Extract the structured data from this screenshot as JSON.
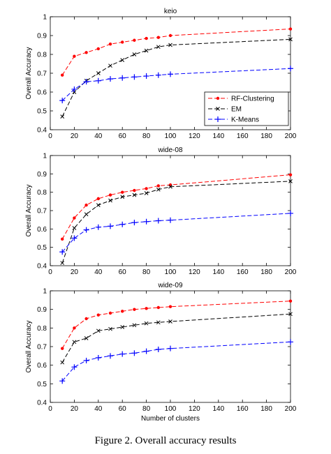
{
  "caption": "Figure 2.    Overall accuracy results",
  "colors": {
    "rf": "#ff0000",
    "em": "#000000",
    "km": "#0000ff"
  },
  "chart_data": [
    {
      "type": "line",
      "title": "keio",
      "xlabel": "",
      "ylabel": "Overall Accuracy",
      "xlim": [
        0,
        200
      ],
      "ylim": [
        0.4,
        1
      ],
      "xticks": [
        "0",
        "20",
        "40",
        "60",
        "80",
        "100",
        "120",
        "140",
        "160",
        "180",
        "200"
      ],
      "yticks": [
        "0.4",
        "0.5",
        "0.6",
        "0.7",
        "0.8",
        "0.9",
        "1"
      ],
      "legend": "right",
      "series": [
        {
          "name": "RF-Clustering",
          "key": "rf",
          "marker": "dot",
          "x": [
            10,
            20,
            30,
            40,
            50,
            60,
            70,
            80,
            90,
            100,
            200
          ],
          "y": [
            0.69,
            0.79,
            0.81,
            0.83,
            0.855,
            0.865,
            0.875,
            0.885,
            0.89,
            0.9,
            0.935
          ]
        },
        {
          "name": "EM",
          "key": "em",
          "marker": "x",
          "x": [
            10,
            20,
            30,
            40,
            50,
            60,
            70,
            80,
            90,
            100,
            200
          ],
          "y": [
            0.47,
            0.6,
            0.66,
            0.7,
            0.74,
            0.77,
            0.8,
            0.82,
            0.84,
            0.85,
            0.88
          ]
        },
        {
          "name": "K-Means",
          "key": "km",
          "marker": "plus",
          "x": [
            10,
            20,
            30,
            40,
            50,
            60,
            70,
            80,
            90,
            100,
            200
          ],
          "y": [
            0.555,
            0.615,
            0.655,
            0.66,
            0.67,
            0.675,
            0.68,
            0.685,
            0.69,
            0.695,
            0.725
          ]
        }
      ]
    },
    {
      "type": "line",
      "title": "wide-08",
      "xlabel": "",
      "ylabel": "Overall Accuracy",
      "xlim": [
        0,
        200
      ],
      "ylim": [
        0.4,
        1
      ],
      "xticks": [
        "0",
        "20",
        "40",
        "60",
        "80",
        "100",
        "120",
        "140",
        "160",
        "180",
        "200"
      ],
      "yticks": [
        "0.4",
        "0.5",
        "0.6",
        "0.7",
        "0.8",
        "0.9",
        "1"
      ],
      "series": [
        {
          "key": "rf",
          "marker": "dot",
          "x": [
            10,
            20,
            30,
            40,
            50,
            60,
            70,
            80,
            90,
            100,
            200
          ],
          "y": [
            0.545,
            0.66,
            0.73,
            0.765,
            0.785,
            0.8,
            0.81,
            0.82,
            0.835,
            0.84,
            0.895
          ]
        },
        {
          "key": "em",
          "marker": "x",
          "x": [
            10,
            20,
            30,
            40,
            50,
            60,
            70,
            80,
            90,
            100,
            200
          ],
          "y": [
            0.415,
            0.605,
            0.68,
            0.73,
            0.755,
            0.775,
            0.785,
            0.795,
            0.815,
            0.83,
            0.86
          ]
        },
        {
          "key": "km",
          "marker": "plus",
          "x": [
            10,
            20,
            30,
            40,
            50,
            60,
            70,
            80,
            90,
            100,
            200
          ],
          "y": [
            0.475,
            0.55,
            0.595,
            0.61,
            0.615,
            0.625,
            0.635,
            0.64,
            0.645,
            0.648,
            0.685
          ]
        }
      ]
    },
    {
      "type": "line",
      "title": "wide-09",
      "xlabel": "Number of clusters",
      "ylabel": "Overall Accuracy",
      "xlim": [
        0,
        200
      ],
      "ylim": [
        0.4,
        1
      ],
      "xticks": [
        "0",
        "20",
        "40",
        "60",
        "80",
        "100",
        "120",
        "140",
        "160",
        "180",
        "200"
      ],
      "yticks": [
        "0.4",
        "0.5",
        "0.6",
        "0.7",
        "0.8",
        "0.9",
        "1"
      ],
      "series": [
        {
          "key": "rf",
          "marker": "dot",
          "x": [
            10,
            20,
            30,
            40,
            50,
            60,
            70,
            80,
            90,
            100,
            200
          ],
          "y": [
            0.69,
            0.8,
            0.85,
            0.87,
            0.88,
            0.89,
            0.9,
            0.905,
            0.91,
            0.915,
            0.945
          ]
        },
        {
          "key": "em",
          "marker": "x",
          "x": [
            10,
            20,
            30,
            40,
            50,
            60,
            70,
            80,
            90,
            100,
            200
          ],
          "y": [
            0.615,
            0.725,
            0.745,
            0.785,
            0.795,
            0.805,
            0.815,
            0.825,
            0.83,
            0.835,
            0.875
          ]
        },
        {
          "key": "km",
          "marker": "plus",
          "x": [
            10,
            20,
            30,
            40,
            50,
            60,
            70,
            80,
            90,
            100,
            200
          ],
          "y": [
            0.515,
            0.59,
            0.625,
            0.64,
            0.65,
            0.66,
            0.665,
            0.675,
            0.685,
            0.69,
            0.725
          ]
        }
      ]
    }
  ]
}
